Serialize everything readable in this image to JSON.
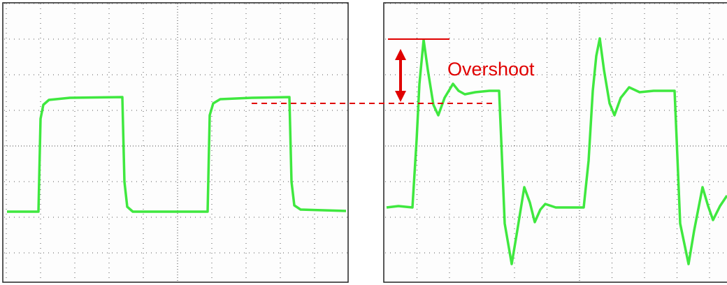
{
  "annotation": {
    "label": "Overshoot"
  }
}
